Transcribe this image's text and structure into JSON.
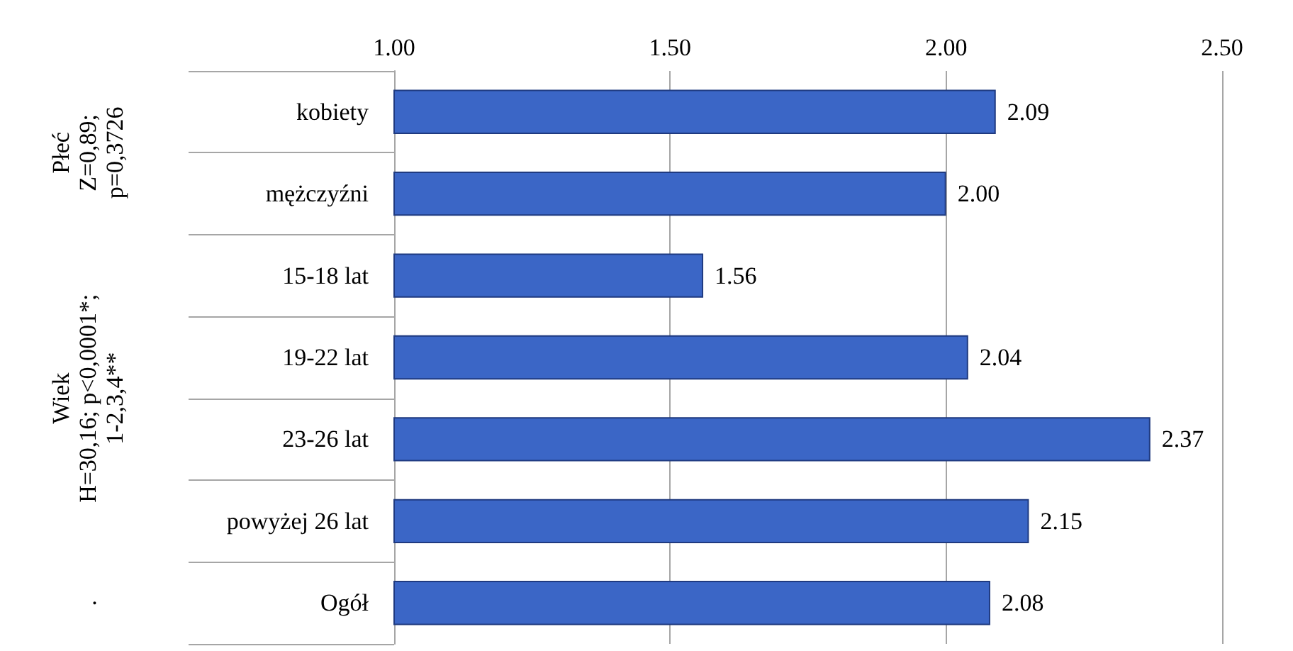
{
  "chart_data": {
    "type": "bar",
    "orientation": "horizontal",
    "categories": [
      "kobiety",
      "mężczyźni",
      "15-18 lat",
      "19-22 lat",
      "23-26 lat",
      "powyżej 26 lat",
      "Ogół"
    ],
    "values": [
      2.09,
      2.0,
      1.56,
      2.04,
      2.37,
      2.15,
      2.08
    ],
    "color": "#3b66c6",
    "xlim": [
      1,
      2.5
    ],
    "xticks": [
      {
        "value": 1,
        "label": "1.00"
      },
      {
        "value": 1.5,
        "label": "1.50"
      },
      {
        "value": 2,
        "label": "2.00"
      },
      {
        "value": 2.5,
        "label": "2.50"
      }
    ],
    "grid": "x",
    "value_labels": [
      "2.09",
      "2.00",
      "1.56",
      "2.04",
      "2.37",
      "2.15",
      "2.08"
    ],
    "annotations": [
      "Płeć\nZ=0,89;\np=0,3726",
      "Wiek\nH=30,16; p<0,0001*;\n1-2,3,4**",
      "."
    ]
  }
}
